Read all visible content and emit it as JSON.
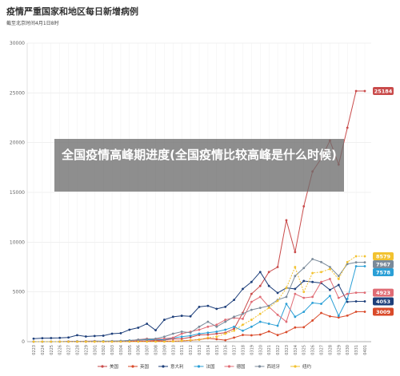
{
  "title": "疫情严重国家和地区每日新增病例",
  "subtitle": "截至北京时间4月1日8时",
  "overlay_text": "全国疫情高峰期进度(全国疫情比较高峰是什么时候)",
  "chart_data": {
    "type": "line",
    "x": [
      "0223",
      "0224",
      "0225",
      "0226",
      "0227",
      "0228",
      "0229",
      "0301",
      "0302",
      "0303",
      "0304",
      "0305",
      "0306",
      "0307",
      "0308",
      "0309",
      "0310",
      "0311",
      "0312",
      "0313",
      "0314",
      "0315",
      "0316",
      "0317",
      "0318",
      "0319",
      "0320",
      "0321",
      "0322",
      "0323",
      "0324",
      "0325",
      "0326",
      "0327",
      "0328",
      "0329",
      "0330",
      "0331",
      "0401"
    ],
    "ylim": [
      0,
      30000
    ],
    "yticks": [
      0,
      5000,
      10000,
      15000,
      20000,
      25000,
      30000
    ],
    "series": [
      {
        "name": "美国",
        "color": "#c94a4a",
        "values": [
          0,
          0,
          0,
          0,
          0,
          1,
          3,
          10,
          20,
          30,
          30,
          50,
          70,
          80,
          120,
          160,
          280,
          290,
          440,
          680,
          700,
          800,
          900,
          1300,
          2900,
          4800,
          5600,
          7000,
          7500,
          12200,
          9000,
          13600,
          17100,
          18400,
          20200,
          17800,
          21500,
          25184,
          25184
        ]
      },
      {
        "name": "英国",
        "color": "#d94a2a",
        "values": [
          0,
          0,
          0,
          0,
          0,
          3,
          4,
          12,
          5,
          11,
          34,
          29,
          46,
          46,
          64,
          50,
          52,
          83,
          134,
          208,
          342,
          251,
          152,
          407,
          676,
          643,
          714,
          1035,
          665,
          967,
          1427,
          1452,
          2129,
          2885,
          2546,
          2433,
          2619,
          3009,
          3009
        ]
      },
      {
        "name": "意大利",
        "color": "#1e3f7a",
        "values": [
          300,
          350,
          360,
          380,
          420,
          650,
          520,
          570,
          600,
          800,
          850,
          1200,
          1400,
          1800,
          1150,
          2200,
          2500,
          2600,
          2550,
          3500,
          3600,
          3300,
          3500,
          4200,
          5300,
          6000,
          7000,
          5600,
          4900,
          5400,
          5300,
          6100,
          6000,
          5900,
          5200,
          5700,
          4000,
          4053,
          4053
        ]
      },
      {
        "name": "法国",
        "color": "#2a9fd6",
        "values": [
          0,
          0,
          0,
          0,
          20,
          40,
          30,
          60,
          50,
          60,
          70,
          130,
          170,
          200,
          200,
          200,
          370,
          500,
          600,
          800,
          900,
          1000,
          1200,
          1500,
          1100,
          1500,
          2000,
          1800,
          1600,
          3800,
          2500,
          3000,
          3900,
          3800,
          4600,
          2600,
          4300,
          7578,
          7578
        ]
      },
      {
        "name": "德国",
        "color": "#e06c75",
        "values": [
          0,
          0,
          0,
          0,
          30,
          30,
          50,
          60,
          40,
          50,
          60,
          100,
          200,
          300,
          250,
          300,
          400,
          800,
          1000,
          1200,
          1500,
          1700,
          2200,
          2400,
          2300,
          4000,
          4500,
          3500,
          2700,
          2000,
          4800,
          4400,
          4500,
          6000,
          6300,
          4400,
          4800,
          4923,
          4923
        ]
      },
      {
        "name": "西班牙",
        "color": "#7a8a9a",
        "values": [
          0,
          0,
          0,
          0,
          10,
          20,
          30,
          40,
          40,
          50,
          80,
          100,
          200,
          250,
          300,
          500,
          800,
          1000,
          900,
          1500,
          2000,
          1500,
          2000,
          2500,
          2800,
          3200,
          3400,
          3600,
          4200,
          4500,
          6600,
          7400,
          8300,
          8000,
          7500,
          6600,
          7800,
          7967,
          7967
        ]
      },
      {
        "name": "纽约",
        "color": "#f2c230",
        "values": [
          0,
          0,
          0,
          0,
          0,
          0,
          0,
          0,
          0,
          0,
          0,
          0,
          0,
          0,
          0,
          0,
          30,
          100,
          150,
          200,
          400,
          500,
          800,
          1100,
          1700,
          2200,
          2800,
          3400,
          4100,
          5400,
          7500,
          5000,
          6900,
          7000,
          7300,
          6300,
          8000,
          8579,
          8579
        ]
      }
    ],
    "end_labels": [
      {
        "text": "25184",
        "color": "#c94a4a",
        "value": 25184
      },
      {
        "text": "8579",
        "color": "#f2c230",
        "value": 8579
      },
      {
        "text": "7967",
        "color": "#7a8a9a",
        "value": 7967
      },
      {
        "text": "7578",
        "color": "#2a9fd6",
        "value": 7578
      },
      {
        "text": "4923",
        "color": "#e06c75",
        "value": 4923
      },
      {
        "text": "4053",
        "color": "#1e3f7a",
        "value": 4053
      },
      {
        "text": "3009",
        "color": "#d94a2a",
        "value": 3009
      }
    ],
    "legend_position": "bottom",
    "grid": true
  }
}
